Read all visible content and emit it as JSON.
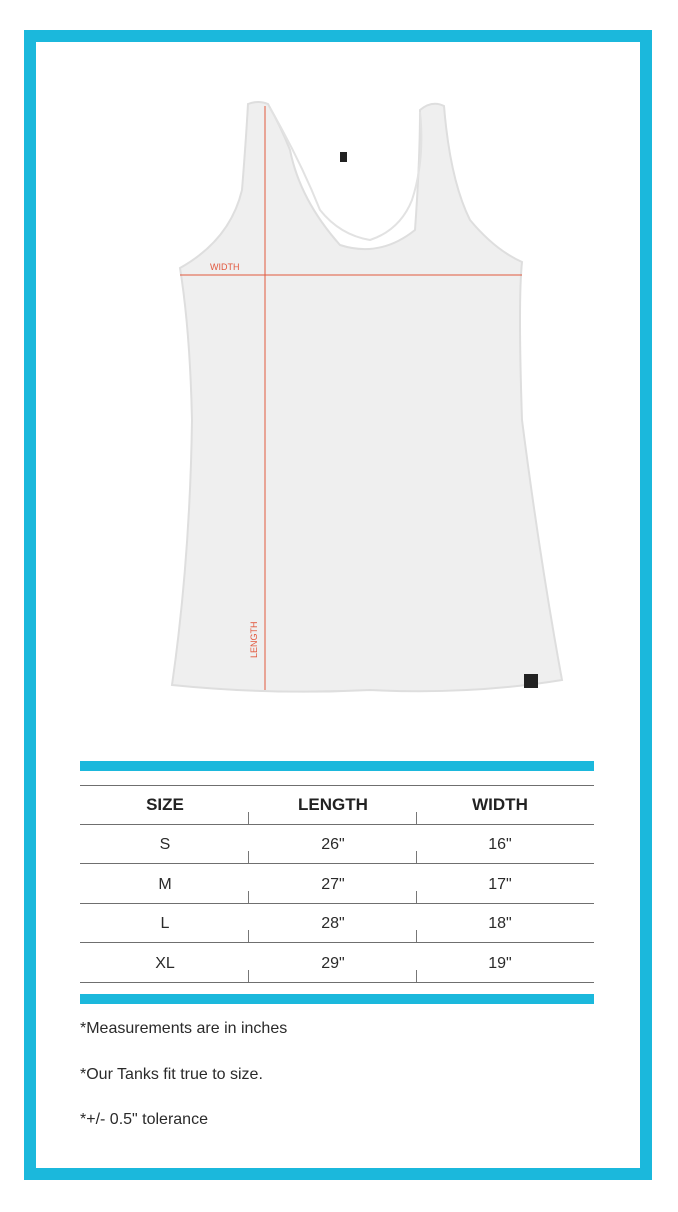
{
  "accent_color": "#1bb8dc",
  "measure_color": "#e2583e",
  "diagram": {
    "width_label": "WIDTH",
    "length_label": "LENGTH"
  },
  "table": {
    "headers": [
      "SIZE",
      "LENGTH",
      "WIDTH"
    ],
    "rows": [
      [
        "S",
        "26\"",
        "16\""
      ],
      [
        "M",
        "27\"",
        "17\""
      ],
      [
        "L",
        "28\"",
        "18\""
      ],
      [
        "XL",
        "29\"",
        "19\""
      ]
    ]
  },
  "notes": [
    "*Measurements are in inches",
    "*Our Tanks fit true to size.",
    "*+/- 0.5\" tolerance"
  ]
}
